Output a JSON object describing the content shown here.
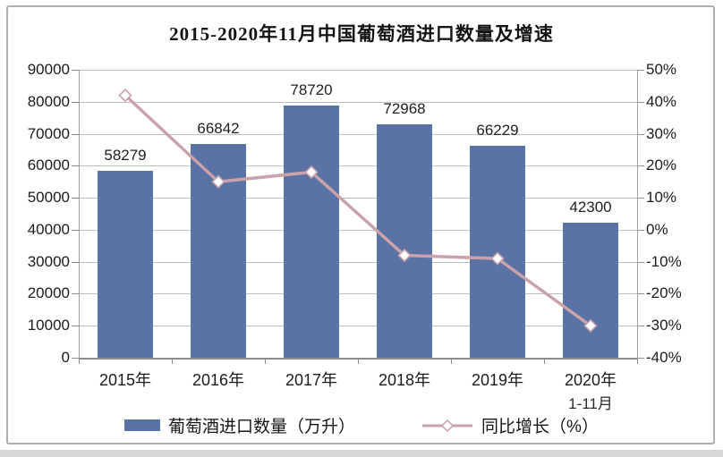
{
  "title": "2015-2020年11月中国葡萄酒进口数量及增速",
  "chart_data": {
    "type": "bar",
    "subtype": "bar+line combo, dual axis",
    "title": "2015-2020年11月中国葡萄酒进口数量及增速",
    "categories": [
      "2015年",
      "2016年",
      "2017年",
      "2018年",
      "2019年",
      "2020年"
    ],
    "category_sublabels": [
      "",
      "",
      "",
      "",
      "",
      "1-11月"
    ],
    "series": [
      {
        "name": "葡萄酒进口数量（万升）",
        "type": "bar",
        "axis": "left",
        "values": [
          58279,
          66842,
          78720,
          72968,
          66229,
          42300
        ],
        "data_labels": [
          "58279",
          "66842",
          "78720",
          "72968",
          "66229",
          "42300"
        ],
        "color": "#5b72a4"
      },
      {
        "name": "同比增长（%）",
        "type": "line",
        "axis": "right",
        "values": [
          42,
          15,
          18,
          -8,
          -9,
          -30
        ],
        "color": "#c9a2ac",
        "marker": "diamond",
        "marker_fill": "#ffffff"
      }
    ],
    "left_axis": {
      "min": 0,
      "max": 90000,
      "step": 10000,
      "tick_labels": [
        "90000",
        "80000",
        "70000",
        "60000",
        "50000",
        "40000",
        "30000",
        "20000",
        "10000",
        "0"
      ]
    },
    "right_axis": {
      "min": -40,
      "max": 50,
      "step": 10,
      "tick_labels": [
        "50%",
        "40%",
        "30%",
        "20%",
        "10%",
        "0%",
        "-10%",
        "-20%",
        "-30%",
        "-40%"
      ]
    },
    "grid": true,
    "legend_position": "bottom",
    "xlabel": "",
    "ylabel": ""
  },
  "legend": {
    "bar_label": "葡萄酒进口数量（万升）",
    "line_label": "同比增长（%）"
  },
  "colors": {
    "bar": "#5b72a4",
    "line": "#c9a2ac",
    "marker_fill": "#ffffff",
    "grid": "#bfbfbf",
    "axis": "#8e8e8e",
    "frame_border": "#aeaeae"
  }
}
